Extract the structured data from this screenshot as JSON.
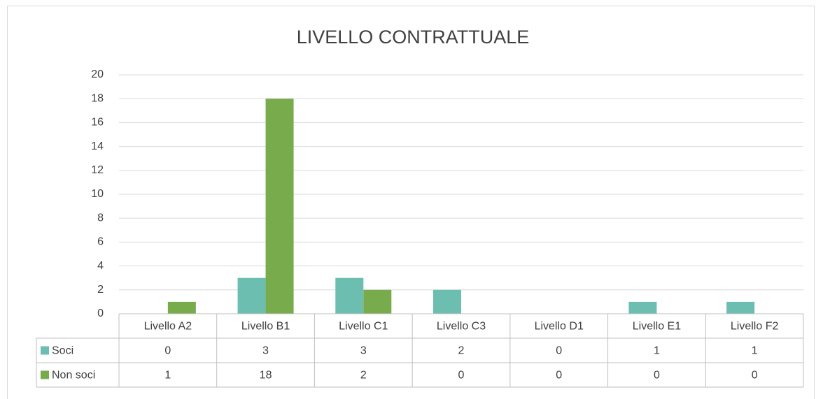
{
  "chart_data": {
    "type": "bar",
    "title": "LIVELLO CONTRATTUALE",
    "categories": [
      "Livello A2",
      "Livello B1",
      "Livello C1",
      "Livello C3",
      "Livello D1",
      "Livello E1",
      "Livello F2"
    ],
    "series": [
      {
        "name": "Soci",
        "color": "#6cbfb0",
        "values": [
          0,
          3,
          3,
          2,
          0,
          1,
          1
        ]
      },
      {
        "name": "Non soci",
        "color": "#77ab4c",
        "values": [
          1,
          18,
          2,
          0,
          0,
          0,
          0
        ]
      }
    ],
    "ylim": [
      0,
      20
    ],
    "yticks": [
      0,
      2,
      4,
      6,
      8,
      10,
      12,
      14,
      16,
      18,
      20
    ],
    "grid": true
  }
}
